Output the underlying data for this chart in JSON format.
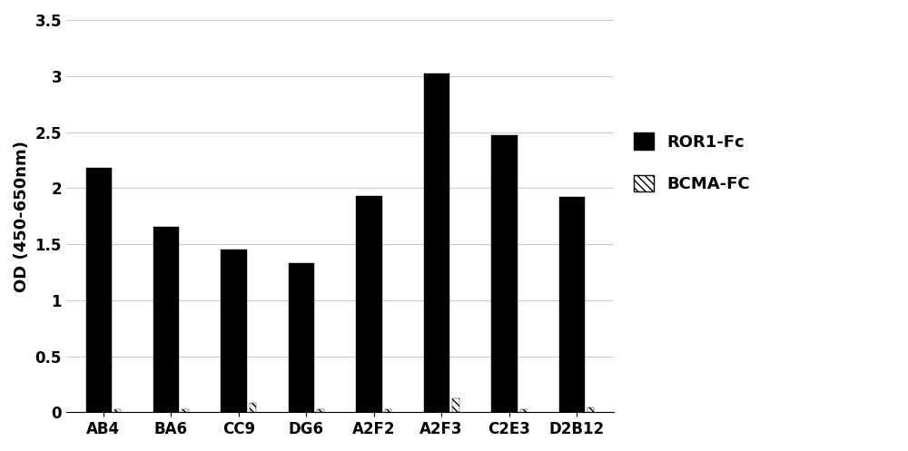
{
  "categories": [
    "AB4",
    "BA6",
    "CC9",
    "DG6",
    "A2F2",
    "A2F3",
    "C2E3",
    "D2B12"
  ],
  "ror1_fc_values": [
    2.18,
    1.65,
    1.45,
    1.33,
    1.93,
    3.02,
    2.47,
    1.92
  ],
  "bcma_fc_values": [
    0.03,
    0.03,
    0.08,
    0.03,
    0.03,
    0.12,
    0.03,
    0.04
  ],
  "bar_color_ror1": "#000000",
  "ylabel": "OD (450-650nm)",
  "ylim": [
    0,
    3.5
  ],
  "yticks": [
    0,
    0.5,
    1,
    1.5,
    2,
    2.5,
    3,
    3.5
  ],
  "ytick_labels": [
    "0",
    "0.5",
    "1",
    "1.5",
    "2",
    "2.5",
    "3",
    "3.5"
  ],
  "legend_ror1": "ROR1-Fc",
  "legend_bcma": "BCMA-FC",
  "background_color": "#ffffff",
  "ror1_bar_width": 0.38,
  "bcma_bar_width": 0.1,
  "label_fontsize": 13,
  "tick_fontsize": 12
}
